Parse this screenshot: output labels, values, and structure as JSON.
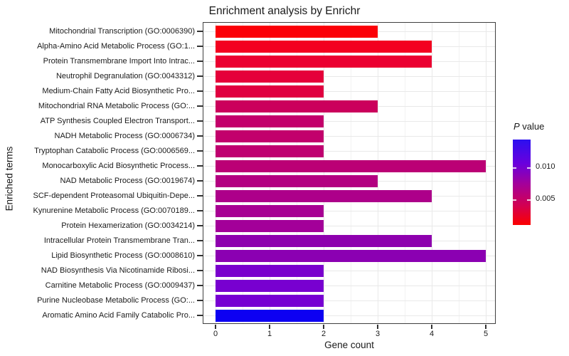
{
  "chart_data": {
    "type": "bar",
    "orientation": "horizontal",
    "title": "Enrichment analysis by Enrichr",
    "xlabel": "Gene count",
    "ylabel": "Enriched terms",
    "xlim": [
      0,
      5
    ],
    "x_ticks": [
      "0",
      "1",
      "2",
      "3",
      "4",
      "5"
    ],
    "grid": true,
    "categories": [
      "Mitochondrial Transcription (GO:0006390)",
      "Alpha-Amino Acid Metabolic Process (GO:1...",
      "Protein Transmembrane Import Into Intrac...",
      "Neutrophil Degranulation (GO:0043312)",
      "Medium-Chain Fatty Acid Biosynthetic Pro...",
      "Mitochondrial RNA Metabolic Process (GO:...",
      "ATP Synthesis Coupled Electron Transport...",
      "NADH Metabolic Process (GO:0006734)",
      "Tryptophan Catabolic Process (GO:0006569...",
      "Monocarboxylic Acid Biosynthetic Process...",
      "NAD Metabolic Process (GO:0019674)",
      "SCF-dependent Proteasomal Ubiquitin-Depe...",
      "Kynurenine Metabolic Process (GO:0070189...",
      "Protein Hexamerization (GO:0034214)",
      "Intracellular Protein Transmembrane Tran...",
      "Lipid Biosynthetic Process (GO:0008610)",
      "NAD Biosynthesis Via Nicotinamide Ribosi...",
      "Carnitine Metabolic Process (GO:0009437)",
      "Purine Nucleobase Metabolic Process (GO:...",
      "Aromatic Amino Acid Family Catabolic Pro..."
    ],
    "values": [
      3,
      4,
      4,
      2,
      2,
      3,
      2,
      2,
      2,
      5,
      3,
      4,
      2,
      2,
      4,
      5,
      2,
      2,
      2,
      2
    ],
    "bar_colors": [
      "#FB0008",
      "#F30020",
      "#EB0031",
      "#E5003A",
      "#E00040",
      "#CB005C",
      "#C3006B",
      "#C2006C",
      "#BF0070",
      "#BB0075",
      "#B30081",
      "#AD008A",
      "#A70093",
      "#A30099",
      "#8E00AE",
      "#8B00B2",
      "#7A00CD",
      "#7800D0",
      "#7700D2",
      "#0D00F2"
    ],
    "legend": {
      "title_italic": "P",
      "title_rest": "value",
      "position": "right",
      "ticks": [
        "0.010",
        "0.005"
      ],
      "gradient_top_color": "#2B10F0",
      "gradient_mid_colors": [
        "#6A00DD",
        "#A4009A",
        "#D4004F"
      ],
      "gradient_bottom_color": "#FB0000"
    },
    "panel": {
      "background": "#FFFFFF",
      "border_color": "#3F3F3F",
      "grid_color": "#E9E9E9"
    }
  }
}
